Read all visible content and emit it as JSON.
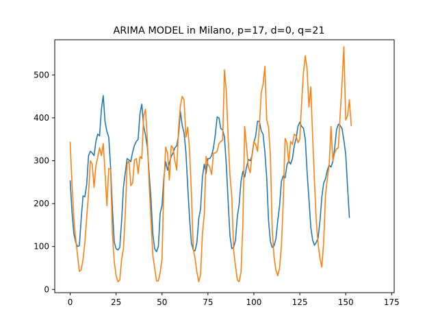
{
  "chart_data": {
    "type": "line",
    "title": "ARIMA MODEL in Milano, p=17, d=0, q=21",
    "xlabel": "",
    "ylabel": "",
    "xlim": [
      -8.4,
      176.4
    ],
    "ylim": [
      -7.5,
      582
    ],
    "xticks": [
      0,
      25,
      50,
      75,
      100,
      125,
      150,
      175
    ],
    "yticks": [
      0,
      100,
      200,
      300,
      400,
      500
    ],
    "grid": false,
    "legend": "none",
    "series": [
      {
        "color": "#1f77b4",
        "points": [
          [
            0,
            253
          ],
          [
            1,
            180
          ],
          [
            2,
            130
          ],
          [
            3,
            110
          ],
          [
            4,
            100
          ],
          [
            5,
            102
          ],
          [
            6,
            165
          ],
          [
            7,
            218
          ],
          [
            8,
            216
          ],
          [
            9,
            245
          ],
          [
            10,
            312
          ],
          [
            11,
            322
          ],
          [
            12,
            318
          ],
          [
            13,
            312
          ],
          [
            14,
            345
          ],
          [
            15,
            362
          ],
          [
            16,
            358
          ],
          [
            17,
            420
          ],
          [
            18,
            452
          ],
          [
            19,
            390
          ],
          [
            20,
            368
          ],
          [
            21,
            355
          ],
          [
            22,
            285
          ],
          [
            23,
            188
          ],
          [
            24,
            110
          ],
          [
            25,
            95
          ],
          [
            26,
            92
          ],
          [
            27,
            98
          ],
          [
            28,
            160
          ],
          [
            29,
            238
          ],
          [
            30,
            272
          ],
          [
            31,
            305
          ],
          [
            32,
            302
          ],
          [
            33,
            298
          ],
          [
            34,
            320
          ],
          [
            35,
            336
          ],
          [
            36,
            345
          ],
          [
            37,
            350
          ],
          [
            38,
            410
          ],
          [
            39,
            432
          ],
          [
            40,
            380
          ],
          [
            41,
            360
          ],
          [
            42,
            332
          ],
          [
            43,
            270
          ],
          [
            44,
            210
          ],
          [
            45,
            130
          ],
          [
            46,
            95
          ],
          [
            47,
            88
          ],
          [
            48,
            100
          ],
          [
            49,
            178
          ],
          [
            50,
            195
          ],
          [
            51,
            260
          ],
          [
            52,
            298
          ],
          [
            53,
            278
          ],
          [
            54,
            295
          ],
          [
            55,
            310
          ],
          [
            56,
            318
          ],
          [
            57,
            330
          ],
          [
            58,
            335
          ],
          [
            59,
            360
          ],
          [
            60,
            415
          ],
          [
            61,
            382
          ],
          [
            62,
            365
          ],
          [
            63,
            320
          ],
          [
            64,
            240
          ],
          [
            65,
            165
          ],
          [
            66,
            108
          ],
          [
            67,
            92
          ],
          [
            68,
            90
          ],
          [
            69,
            110
          ],
          [
            70,
            165
          ],
          [
            71,
            188
          ],
          [
            72,
            262
          ],
          [
            73,
            292
          ],
          [
            74,
            270
          ],
          [
            75,
            305
          ],
          [
            76,
            305
          ],
          [
            77,
            312
          ],
          [
            78,
            330
          ],
          [
            79,
            360
          ],
          [
            80,
            402
          ],
          [
            81,
            400
          ],
          [
            82,
            375
          ],
          [
            83,
            372
          ],
          [
            84,
            355
          ],
          [
            85,
            290
          ],
          [
            86,
            205
          ],
          [
            87,
            125
          ],
          [
            88,
            95
          ],
          [
            89,
            98
          ],
          [
            90,
            115
          ],
          [
            91,
            170
          ],
          [
            92,
            198
          ],
          [
            93,
            252
          ],
          [
            94,
            275
          ],
          [
            95,
            262
          ],
          [
            96,
            285
          ],
          [
            97,
            303
          ],
          [
            98,
            300
          ],
          [
            99,
            312
          ],
          [
            100,
            342
          ],
          [
            101,
            358
          ],
          [
            102,
            392
          ],
          [
            103,
            392
          ],
          [
            104,
            370
          ],
          [
            105,
            362
          ],
          [
            106,
            320
          ],
          [
            107,
            260
          ],
          [
            108,
            160
          ],
          [
            109,
            112
          ],
          [
            110,
            98
          ],
          [
            111,
            102
          ],
          [
            112,
            118
          ],
          [
            113,
            160
          ],
          [
            114,
            195
          ],
          [
            115,
            252
          ],
          [
            116,
            265
          ],
          [
            117,
            260
          ],
          [
            118,
            290
          ],
          [
            119,
            300
          ],
          [
            120,
            292
          ],
          [
            121,
            305
          ],
          [
            122,
            335
          ],
          [
            123,
            352
          ],
          [
            124,
            380
          ],
          [
            125,
            390
          ],
          [
            126,
            380
          ],
          [
            127,
            376
          ],
          [
            128,
            350
          ],
          [
            129,
            272
          ],
          [
            130,
            210
          ],
          [
            131,
            145
          ],
          [
            132,
            115
          ],
          [
            133,
            103
          ],
          [
            134,
            110
          ],
          [
            135,
            120
          ],
          [
            136,
            160
          ],
          [
            137,
            215
          ],
          [
            138,
            248
          ],
          [
            139,
            258
          ],
          [
            140,
            278
          ],
          [
            141,
            290
          ],
          [
            142,
            285
          ],
          [
            143,
            298
          ],
          [
            144,
            330
          ],
          [
            145,
            372
          ],
          [
            146,
            385
          ],
          [
            147,
            382
          ],
          [
            148,
            375
          ],
          [
            149,
            348
          ],
          [
            150,
            315
          ],
          [
            151,
            240
          ],
          [
            152,
            168
          ]
        ]
      },
      {
        "color": "#ff7f0e",
        "points": [
          [
            0,
            343
          ],
          [
            1,
            245
          ],
          [
            2,
            165
          ],
          [
            3,
            118
          ],
          [
            4,
            80
          ],
          [
            5,
            42
          ],
          [
            6,
            46
          ],
          [
            7,
            70
          ],
          [
            8,
            110
          ],
          [
            9,
            168
          ],
          [
            10,
            225
          ],
          [
            11,
            300
          ],
          [
            12,
            292
          ],
          [
            13,
            238
          ],
          [
            14,
            288
          ],
          [
            15,
            308
          ],
          [
            16,
            330
          ],
          [
            17,
            312
          ],
          [
            18,
            340
          ],
          [
            19,
            272
          ],
          [
            20,
            195
          ],
          [
            21,
            282
          ],
          [
            22,
            280
          ],
          [
            23,
            128
          ],
          [
            24,
            65
          ],
          [
            25,
            32
          ],
          [
            26,
            18
          ],
          [
            27,
            22
          ],
          [
            28,
            70
          ],
          [
            29,
            95
          ],
          [
            30,
            175
          ],
          [
            31,
            292
          ],
          [
            32,
            300
          ],
          [
            33,
            242
          ],
          [
            34,
            248
          ],
          [
            35,
            302
          ],
          [
            36,
            305
          ],
          [
            37,
            270
          ],
          [
            38,
            310
          ],
          [
            39,
            305
          ],
          [
            40,
            405
          ],
          [
            41,
            420
          ],
          [
            42,
            350
          ],
          [
            43,
            245
          ],
          [
            44,
            160
          ],
          [
            45,
            80
          ],
          [
            46,
            50
          ],
          [
            47,
            20
          ],
          [
            48,
            20
          ],
          [
            49,
            40
          ],
          [
            50,
            70
          ],
          [
            51,
            245
          ],
          [
            52,
            332
          ],
          [
            53,
            318
          ],
          [
            54,
            255
          ],
          [
            55,
            335
          ],
          [
            56,
            330
          ],
          [
            57,
            300
          ],
          [
            58,
            278
          ],
          [
            59,
            375
          ],
          [
            60,
            428
          ],
          [
            61,
            450
          ],
          [
            62,
            442
          ],
          [
            63,
            355
          ],
          [
            64,
            378
          ],
          [
            65,
            325
          ],
          [
            66,
            225
          ],
          [
            67,
            95
          ],
          [
            68,
            72
          ],
          [
            69,
            40
          ],
          [
            70,
            18
          ],
          [
            71,
            35
          ],
          [
            72,
            130
          ],
          [
            73,
            175
          ],
          [
            74,
            310
          ],
          [
            75,
            292
          ],
          [
            76,
            285
          ],
          [
            77,
            268
          ],
          [
            78,
            318
          ],
          [
            79,
            318
          ],
          [
            80,
            322
          ],
          [
            81,
            340
          ],
          [
            82,
            345
          ],
          [
            83,
            348
          ],
          [
            84,
            512
          ],
          [
            85,
            462
          ],
          [
            86,
            355
          ],
          [
            87,
            265
          ],
          [
            88,
            215
          ],
          [
            89,
            90
          ],
          [
            90,
            55
          ],
          [
            91,
            22
          ],
          [
            92,
            18
          ],
          [
            93,
            40
          ],
          [
            94,
            150
          ],
          [
            95,
            380
          ],
          [
            96,
            335
          ],
          [
            97,
            285
          ],
          [
            98,
            272
          ],
          [
            99,
            315
          ],
          [
            100,
            345
          ],
          [
            101,
            338
          ],
          [
            102,
            322
          ],
          [
            103,
            380
          ],
          [
            104,
            458
          ],
          [
            105,
            478
          ],
          [
            106,
            520
          ],
          [
            107,
            396
          ],
          [
            108,
            378
          ],
          [
            109,
            312
          ],
          [
            110,
            140
          ],
          [
            111,
            75
          ],
          [
            112,
            45
          ],
          [
            113,
            32
          ],
          [
            114,
            50
          ],
          [
            115,
            100
          ],
          [
            116,
            205
          ],
          [
            117,
            352
          ],
          [
            118,
            342
          ],
          [
            119,
            295
          ],
          [
            120,
            345
          ],
          [
            121,
            338
          ],
          [
            122,
            362
          ],
          [
            123,
            358
          ],
          [
            124,
            342
          ],
          [
            125,
            350
          ],
          [
            126,
            435
          ],
          [
            127,
            505
          ],
          [
            128,
            545
          ],
          [
            129,
            512
          ],
          [
            130,
            425
          ],
          [
            131,
            472
          ],
          [
            132,
            355
          ],
          [
            133,
            252
          ],
          [
            134,
            158
          ],
          [
            135,
            105
          ],
          [
            136,
            72
          ],
          [
            137,
            52
          ],
          [
            138,
            110
          ],
          [
            139,
            220
          ],
          [
            140,
            258
          ],
          [
            141,
            290
          ],
          [
            142,
            380
          ],
          [
            143,
            300
          ],
          [
            144,
            318
          ],
          [
            145,
            328
          ],
          [
            146,
            330
          ],
          [
            147,
            408
          ],
          [
            148,
            480
          ],
          [
            149,
            566
          ],
          [
            150,
            395
          ],
          [
            151,
            405
          ],
          [
            152,
            442
          ],
          [
            153,
            382
          ]
        ]
      }
    ]
  }
}
